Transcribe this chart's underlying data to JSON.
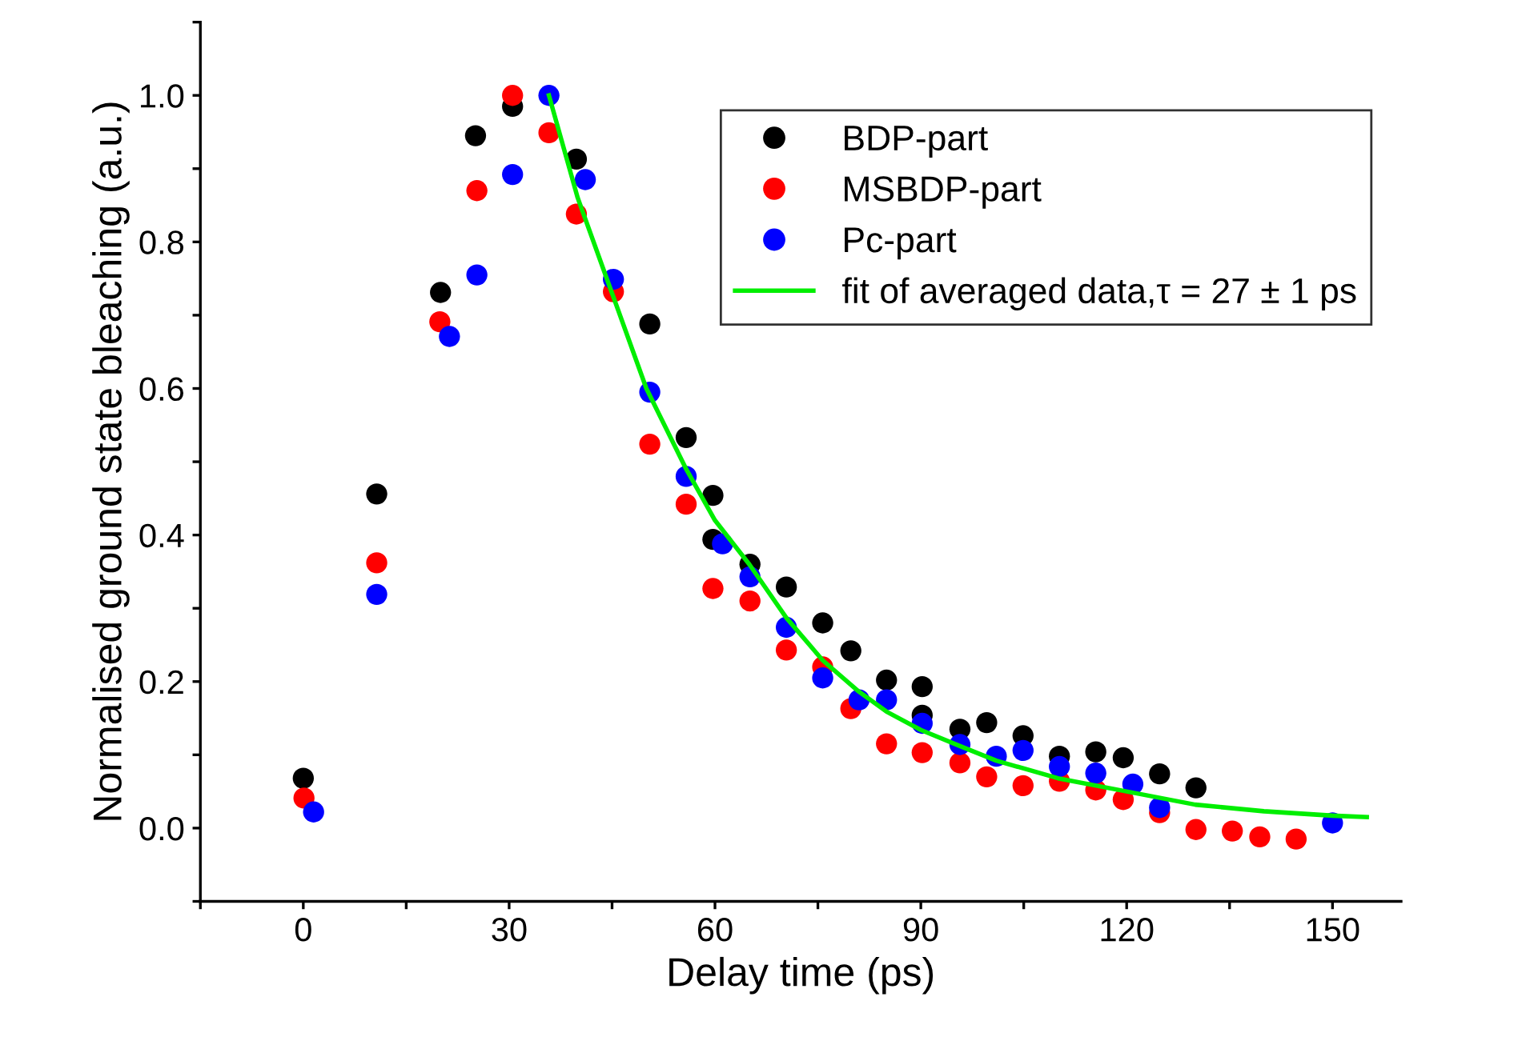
{
  "chart_data": {
    "type": "scatter",
    "xlabel": "Delay time (ps)",
    "ylabel": "Normalised ground state bleaching (a.u.)",
    "xlim": [
      -15,
      160
    ],
    "ylim": [
      -0.1,
      1.1
    ],
    "xticks": [
      {
        "value": -15,
        "label": null
      },
      0,
      {
        "value": 15,
        "label": null
      },
      30,
      {
        "value": 45,
        "label": null
      },
      60,
      {
        "value": 75,
        "label": null
      },
      90,
      {
        "value": 105,
        "label": null
      },
      120,
      {
        "value": 135,
        "label": null
      },
      150
    ],
    "yticks": [
      {
        "value": -0.1,
        "label": null
      },
      {
        "value": 0,
        "label": "0.0"
      },
      {
        "value": 0.1,
        "label": null
      },
      {
        "value": 0.2,
        "label": "0.2"
      },
      {
        "value": 0.3,
        "label": null
      },
      {
        "value": 0.4,
        "label": "0.4"
      },
      {
        "value": 0.5,
        "label": null
      },
      {
        "value": 0.6,
        "label": "0.6"
      },
      {
        "value": 0.7,
        "label": null
      },
      {
        "value": 0.8,
        "label": "0.8"
      },
      {
        "value": 0.9,
        "label": null
      },
      {
        "value": 1.0,
        "label": "1.0"
      },
      {
        "value": 1.1,
        "label": null
      }
    ],
    "grid": false,
    "legend": "top right",
    "marker": "circle",
    "series": [
      {
        "name": "BDP-part",
        "color": "#000000",
        "x": [
          0,
          10.7,
          20,
          25.1,
          30.5,
          39.8,
          50.5,
          55.8,
          59.7,
          59.7,
          65.1,
          70.4,
          75.7,
          79.8,
          85,
          90.2,
          90.2,
          95.7,
          99.6,
          104.9,
          110.2,
          115.5,
          119.5,
          124.8,
          130.1
        ],
        "values": [
          0.068,
          0.456,
          0.731,
          0.945,
          0.985,
          0.913,
          0.688,
          0.533,
          0.454,
          0.394,
          0.36,
          0.329,
          0.28,
          0.242,
          0.202,
          0.193,
          0.154,
          0.135,
          0.144,
          0.126,
          0.098,
          0.104,
          0.096,
          0.074,
          0.055
        ]
      },
      {
        "name": "MSBDP-part",
        "color": "#ff0000",
        "x": [
          0.1,
          10.7,
          19.9,
          25.3,
          30.5,
          35.8,
          39.8,
          45.2,
          50.5,
          55.8,
          59.7,
          65.1,
          70.4,
          75.7,
          79.8,
          85,
          90.2,
          95.7,
          99.6,
          104.9,
          110.2,
          115.5,
          119.5,
          124.8,
          130.1,
          135.4,
          139.4,
          144.7
        ],
        "values": [
          0.041,
          0.362,
          0.691,
          0.87,
          1.0,
          0.949,
          0.838,
          0.732,
          0.524,
          0.442,
          0.327,
          0.31,
          0.243,
          0.22,
          0.163,
          0.115,
          0.103,
          0.089,
          0.07,
          0.058,
          0.064,
          0.052,
          0.039,
          0.021,
          -0.002,
          -0.004,
          -0.012,
          -0.015
        ]
      },
      {
        "name": "Pc-part",
        "color": "#0000ff",
        "x": [
          1.5,
          10.7,
          21.3,
          25.3,
          30.5,
          35.8,
          41.1,
          45.2,
          50.5,
          55.8,
          61.1,
          65.1,
          70.4,
          75.7,
          81,
          85,
          90.2,
          95.7,
          101,
          104.9,
          110.2,
          115.5,
          120.9,
          124.8,
          150
        ],
        "values": [
          0.022,
          0.319,
          0.671,
          0.755,
          0.892,
          1.0,
          0.885,
          0.749,
          0.595,
          0.48,
          0.388,
          0.343,
          0.274,
          0.205,
          0.175,
          0.175,
          0.143,
          0.114,
          0.098,
          0.106,
          0.084,
          0.075,
          0.06,
          0.028,
          0.007
        ]
      },
      {
        "name": "fit of averaged data,τ = 27 ± 1 ps",
        "type": "line",
        "marker": "none",
        "line_style": "solid",
        "color": "#00ee00",
        "x": [
          35.8,
          40,
          45,
          50,
          55.8,
          60,
          65,
          70.4,
          75.7,
          81,
          85,
          90,
          95.7,
          101,
          110,
          120,
          130,
          140,
          150,
          155
        ],
        "values": [
          1.0,
          0.86,
          0.73,
          0.6,
          0.49,
          0.42,
          0.36,
          0.287,
          0.229,
          0.186,
          0.159,
          0.134,
          0.112,
          0.092,
          0.068,
          0.05,
          0.032,
          0.023,
          0.017,
          0.015
        ]
      }
    ]
  }
}
